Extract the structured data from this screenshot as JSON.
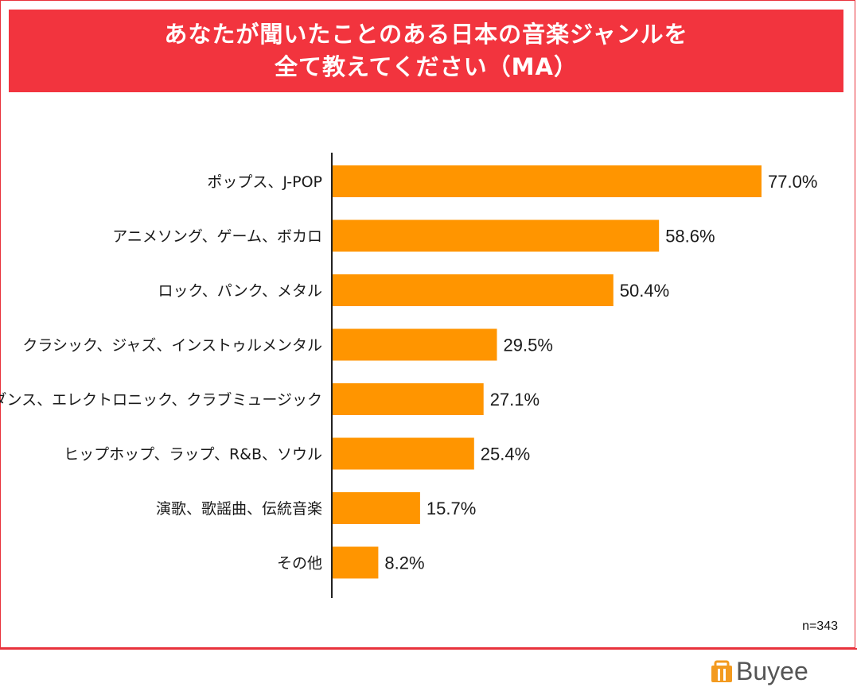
{
  "title": {
    "line1": "あなたが聞いたことのある日本の音楽ジャンルを",
    "line2": "全て教えてください（MA）"
  },
  "note": "n=343",
  "logo": {
    "text": "Buyee"
  },
  "colors": {
    "banner": "#f2343e",
    "bar": "#ff9500",
    "frame": "#e8323c"
  },
  "chart_data": {
    "type": "bar",
    "orientation": "horizontal",
    "categories": [
      "ポップス、J-POP",
      "アニメソング、ゲーム、ボカロ",
      "ロック、パンク、メタル",
      "クラシック、ジャズ、インストゥルメンタル",
      "ダンス、エレクトロニック、クラブミュージック",
      "ヒップホップ、ラップ、R&B、ソウル",
      "演歌、歌謡曲、伝統音楽",
      "その他"
    ],
    "values": [
      77.0,
      58.6,
      50.4,
      29.5,
      27.1,
      25.4,
      15.7,
      8.2
    ],
    "value_labels": [
      "77.0%",
      "58.6%",
      "50.4%",
      "29.5%",
      "27.1%",
      "25.4%",
      "15.7%",
      "8.2%"
    ],
    "unit": "%",
    "xlim": [
      0,
      100
    ],
    "grid": false
  }
}
